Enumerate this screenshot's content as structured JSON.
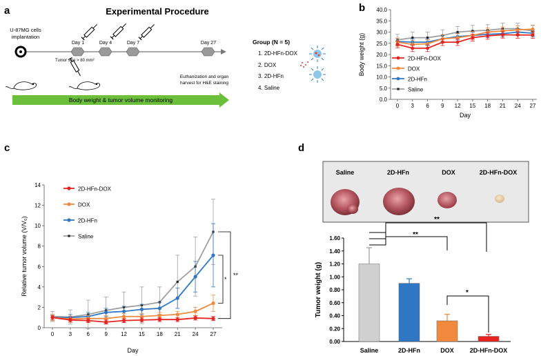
{
  "panels": {
    "a": "a",
    "b": "b",
    "c": "c",
    "d": "d"
  },
  "colors": {
    "hfn_dox": "#e8231f",
    "dox": "#f0893b",
    "hfn": "#2f77c4",
    "saline": "#9e9e9e",
    "arrow": "#6cbf3a",
    "bar_saline": "#d0d0d0"
  },
  "procedure": {
    "title": "Experimental Procedure",
    "cells_label": "U-87MG cells implantation",
    "days": [
      "Day 1",
      "Day 4",
      "Day 7",
      "Day 27"
    ],
    "tumor_size": "Tumor size > 80 mm²",
    "group_title": "Group (N = 5)",
    "groups": [
      "1. 2D-HFn-DOX",
      "2. DOX",
      "3. 2D-HFn",
      "4. Saline"
    ],
    "harvest_note": "Euthanization and organ harvest for H&E staining",
    "monitor_label": "Body weight & tumor volume monitoring"
  },
  "photo": {
    "labels": [
      "Saline",
      "2D-HFn",
      "DOX",
      "2D-HFn-DOX"
    ]
  },
  "chart_data": [
    {
      "type": "line",
      "panel": "b",
      "title": "",
      "xlabel": "Day",
      "ylabel": "Body weight (g)",
      "x": [
        0,
        3,
        6,
        9,
        12,
        15,
        18,
        21,
        24,
        27
      ],
      "ylim": [
        0,
        40
      ],
      "yticks": [
        0.0,
        5.0,
        10.0,
        15.0,
        20.0,
        25.0,
        30.0,
        35.0,
        40.0
      ],
      "legend": "inside-left",
      "series": [
        {
          "name": "2D-HFn-DOX",
          "values": [
            24.5,
            22.8,
            22.8,
            25.5,
            25.5,
            27.5,
            28.3,
            28.8,
            28.7,
            28.7
          ],
          "err": [
            1.5,
            1.5,
            1.5,
            1.5,
            1.5,
            1.5,
            1.5,
            1.5,
            1.5,
            1.5
          ]
        },
        {
          "name": "DOX",
          "values": [
            25.5,
            24.5,
            24.8,
            27.0,
            27.5,
            28.5,
            30.0,
            30.5,
            31.0,
            31.3
          ],
          "err": [
            1.8,
            1.8,
            1.8,
            1.8,
            1.8,
            1.8,
            1.8,
            1.8,
            1.8,
            1.8
          ]
        },
        {
          "name": "2D-HFn",
          "values": [
            25.8,
            25.5,
            25.5,
            27.0,
            28.0,
            28.5,
            29.0,
            29.3,
            30.0,
            29.5
          ],
          "err": [
            1.5,
            1.5,
            1.5,
            1.5,
            1.5,
            1.5,
            1.5,
            1.5,
            1.5,
            1.5
          ]
        },
        {
          "name": "Saline",
          "values": [
            26.5,
            27.5,
            27.5,
            28.5,
            30.0,
            30.5,
            30.8,
            31.5,
            31.5,
            30.5
          ],
          "err": [
            2.5,
            2.5,
            2.5,
            2.5,
            2.5,
            2.5,
            2.5,
            2.5,
            2.5,
            2.5
          ]
        }
      ]
    },
    {
      "type": "line",
      "panel": "c",
      "title": "",
      "xlabel": "Day",
      "ylabel": "Relative tumor volume (V/V₀)",
      "x": [
        0,
        3,
        6,
        9,
        12,
        15,
        18,
        21,
        24,
        27
      ],
      "ylim": [
        0,
        14
      ],
      "yticks": [
        0,
        2,
        4,
        6,
        8,
        10,
        12,
        14
      ],
      "legend": "top-left",
      "series": [
        {
          "name": "2D-HFn-DOX",
          "values": [
            1.0,
            0.75,
            0.7,
            0.55,
            0.7,
            0.75,
            0.8,
            0.8,
            0.95,
            0.9
          ],
          "err": [
            0.2,
            0.2,
            0.2,
            0.2,
            0.2,
            0.2,
            0.2,
            0.2,
            0.2,
            0.2
          ]
        },
        {
          "name": "DOX",
          "values": [
            1.0,
            0.85,
            0.9,
            0.9,
            1.1,
            1.1,
            1.2,
            1.3,
            1.6,
            2.4
          ],
          "err": [
            0.3,
            0.3,
            0.3,
            0.3,
            0.3,
            0.3,
            0.3,
            0.3,
            0.4,
            0.8
          ]
        },
        {
          "name": "2D-HFn",
          "values": [
            1.0,
            1.0,
            1.1,
            1.5,
            1.6,
            1.8,
            1.9,
            2.9,
            5.0,
            7.1
          ],
          "err": [
            0.3,
            0.3,
            0.4,
            0.4,
            0.5,
            0.5,
            0.6,
            1.0,
            1.5,
            3.1
          ]
        },
        {
          "name": "Saline",
          "values": [
            1.1,
            1.05,
            1.3,
            1.7,
            2.0,
            2.2,
            2.5,
            4.5,
            6.0,
            9.4
          ],
          "err": [
            0.5,
            0.7,
            1.4,
            1.3,
            1.5,
            1.8,
            1.5,
            2.6,
            2.9,
            3.2
          ]
        }
      ],
      "annotations": [
        "*",
        "**"
      ]
    },
    {
      "type": "bar",
      "panel": "d",
      "title": "",
      "xlabel": "",
      "ylabel": "Tumor weight (g)",
      "categories": [
        "Saline",
        "2D-HFn",
        "DOX",
        "2D-HFn-DOX"
      ],
      "values": [
        1.2,
        0.9,
        0.32,
        0.08
      ],
      "err": [
        0.25,
        0.07,
        0.1,
        0.03
      ],
      "ylim": [
        0,
        1.6
      ],
      "yticks": [
        "0.00",
        "0.20",
        "0.40",
        "0.60",
        "0.80",
        "1.00",
        "1.20",
        "1.40",
        "1.60"
      ],
      "annotations": [
        "**",
        "**",
        "*"
      ]
    }
  ]
}
